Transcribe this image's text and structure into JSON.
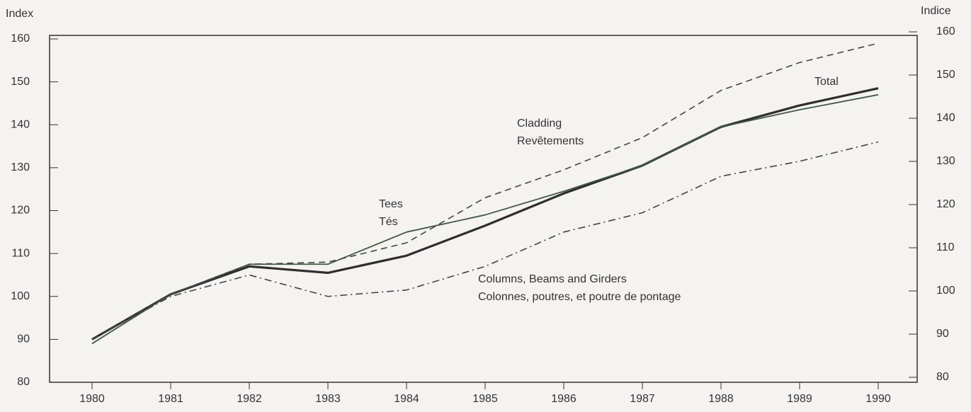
{
  "chart_data": {
    "type": "line",
    "y_label": "Index",
    "y2_label": "Indice",
    "categories": [
      "1980",
      "1981",
      "1982",
      "1983",
      "1984",
      "1985",
      "1986",
      "1987",
      "1988",
      "1989",
      "1990"
    ],
    "series": [
      {
        "name": "Total",
        "color": "#2e2e2e",
        "dash": "solid",
        "values": [
          90,
          100.5,
          107,
          105.5,
          109.5,
          116.5,
          124,
          130.5,
          139.5,
          144.5,
          148.5
        ]
      },
      {
        "name": "Tees",
        "name_fr": "Tés",
        "color": "#3f5a44",
        "dash": "solid",
        "values": [
          89,
          100.5,
          107.5,
          107.5,
          115,
          119,
          124.5,
          130.5,
          139.5,
          143.5,
          147
        ]
      },
      {
        "name": "Cladding",
        "name_fr": "Revêtements",
        "color": "#444444",
        "dash": "dashed",
        "values": [
          90,
          100.5,
          107.5,
          108,
          112.5,
          123,
          129.5,
          137,
          148,
          154.5,
          159
        ]
      },
      {
        "name": "Columns, Beams and Girders",
        "name_fr": "Colonnes, poutres, et poutre de pontage",
        "color": "#444444",
        "dash": "dashdot",
        "values": [
          90,
          100,
          105,
          100,
          101.5,
          107,
          115,
          119.5,
          128,
          131.5,
          136
        ]
      }
    ],
    "ylim": [
      80,
      160
    ],
    "yticks": [
      80,
      90,
      100,
      110,
      120,
      130,
      140,
      150,
      160
    ],
    "y2lim": [
      80,
      160
    ],
    "y2ticks": [
      80,
      90,
      100,
      110,
      120,
      130,
      140,
      150,
      160
    ]
  }
}
